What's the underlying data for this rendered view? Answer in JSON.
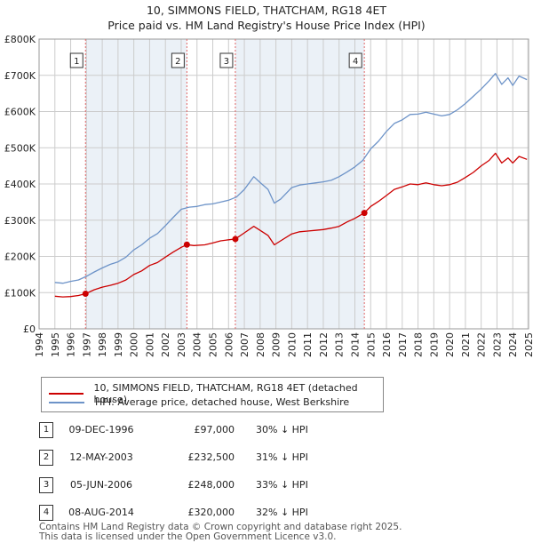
{
  "title_line1": "10, SIMMONS FIELD, THATCHAM, RG18 4ET",
  "title_line2": "Price paid vs. HM Land Registry's House Price Index (HPI)",
  "colors": {
    "property": "#cc0000",
    "hpi": "#6d93c8",
    "grid": "#cccccc",
    "shade": "#dbe5f1"
  },
  "chart_data": {
    "type": "line",
    "title": "Price paid vs. HM Land Registry's House Price Index (HPI)",
    "xlabel": "",
    "ylabel": "",
    "xlim": [
      1994,
      2025
    ],
    "ylim": [
      0,
      800000
    ],
    "x_ticks": [
      "1994",
      "1995",
      "1996",
      "1997",
      "1998",
      "1999",
      "2000",
      "2001",
      "2002",
      "2003",
      "2004",
      "2005",
      "2006",
      "2007",
      "2008",
      "2009",
      "2010",
      "2011",
      "2012",
      "2013",
      "2014",
      "2015",
      "2016",
      "2017",
      "2018",
      "2019",
      "2020",
      "2021",
      "2022",
      "2023",
      "2024",
      "2025"
    ],
    "y_ticks": [
      {
        "value": 0,
        "label": "£0"
      },
      {
        "value": 100000,
        "label": "£100K"
      },
      {
        "value": 200000,
        "label": "£200K"
      },
      {
        "value": 300000,
        "label": "£300K"
      },
      {
        "value": 400000,
        "label": "£400K"
      },
      {
        "value": 500000,
        "label": "£500K"
      },
      {
        "value": 600000,
        "label": "£600K"
      },
      {
        "value": 700000,
        "label": "£700K"
      },
      {
        "value": 800000,
        "label": "£800K"
      }
    ],
    "grid": true,
    "series": [
      {
        "name": "10, SIMMONS FIELD, THATCHAM, RG18 4ET (detached house)",
        "color": "#cc0000",
        "points": [
          [
            1995.0,
            90000
          ],
          [
            1995.5,
            88000
          ],
          [
            1996.0,
            89000
          ],
          [
            1996.5,
            92000
          ],
          [
            1996.94,
            97000
          ],
          [
            1997.5,
            108000
          ],
          [
            1998.0,
            115000
          ],
          [
            1998.5,
            120000
          ],
          [
            1999.0,
            126000
          ],
          [
            1999.5,
            135000
          ],
          [
            2000.0,
            150000
          ],
          [
            2000.5,
            160000
          ],
          [
            2001.0,
            175000
          ],
          [
            2001.5,
            183000
          ],
          [
            2002.0,
            198000
          ],
          [
            2002.5,
            212000
          ],
          [
            2003.0,
            225000
          ],
          [
            2003.36,
            232500
          ],
          [
            2003.8,
            230000
          ],
          [
            2004.5,
            232000
          ],
          [
            2005.0,
            237000
          ],
          [
            2005.5,
            243000
          ],
          [
            2006.0,
            246000
          ],
          [
            2006.43,
            248000
          ],
          [
            2007.0,
            265000
          ],
          [
            2007.6,
            283000
          ],
          [
            2008.0,
            272000
          ],
          [
            2008.5,
            258000
          ],
          [
            2008.9,
            232000
          ],
          [
            2009.3,
            243000
          ],
          [
            2010.0,
            262000
          ],
          [
            2010.5,
            268000
          ],
          [
            2011.0,
            270000
          ],
          [
            2011.5,
            272000
          ],
          [
            2012.0,
            274000
          ],
          [
            2012.5,
            278000
          ],
          [
            2013.0,
            283000
          ],
          [
            2013.5,
            295000
          ],
          [
            2014.0,
            305000
          ],
          [
            2014.6,
            320000
          ],
          [
            2015.0,
            338000
          ],
          [
            2015.5,
            352000
          ],
          [
            2016.0,
            368000
          ],
          [
            2016.5,
            385000
          ],
          [
            2017.0,
            392000
          ],
          [
            2017.5,
            400000
          ],
          [
            2018.0,
            398000
          ],
          [
            2018.5,
            403000
          ],
          [
            2019.0,
            398000
          ],
          [
            2019.5,
            395000
          ],
          [
            2020.0,
            398000
          ],
          [
            2020.5,
            405000
          ],
          [
            2021.0,
            418000
          ],
          [
            2021.5,
            432000
          ],
          [
            2022.0,
            450000
          ],
          [
            2022.5,
            465000
          ],
          [
            2022.9,
            485000
          ],
          [
            2023.3,
            458000
          ],
          [
            2023.7,
            472000
          ],
          [
            2024.0,
            458000
          ],
          [
            2024.4,
            476000
          ],
          [
            2024.9,
            468000
          ]
        ]
      },
      {
        "name": "HPI: Average price, detached house, West Berkshire",
        "color": "#6d93c8",
        "points": [
          [
            1995.0,
            128000
          ],
          [
            1995.5,
            126000
          ],
          [
            1996.0,
            131000
          ],
          [
            1996.5,
            135000
          ],
          [
            1997.0,
            145000
          ],
          [
            1997.5,
            157000
          ],
          [
            1998.0,
            168000
          ],
          [
            1998.5,
            178000
          ],
          [
            1999.0,
            185000
          ],
          [
            1999.5,
            198000
          ],
          [
            2000.0,
            218000
          ],
          [
            2000.5,
            232000
          ],
          [
            2001.0,
            250000
          ],
          [
            2001.5,
            263000
          ],
          [
            2002.0,
            285000
          ],
          [
            2002.5,
            308000
          ],
          [
            2003.0,
            330000
          ],
          [
            2003.5,
            336000
          ],
          [
            2004.0,
            338000
          ],
          [
            2004.5,
            343000
          ],
          [
            2005.0,
            345000
          ],
          [
            2005.5,
            350000
          ],
          [
            2006.0,
            355000
          ],
          [
            2006.5,
            364000
          ],
          [
            2007.0,
            385000
          ],
          [
            2007.6,
            420000
          ],
          [
            2008.0,
            404000
          ],
          [
            2008.5,
            385000
          ],
          [
            2008.9,
            347000
          ],
          [
            2009.3,
            358000
          ],
          [
            2010.0,
            390000
          ],
          [
            2010.5,
            397000
          ],
          [
            2011.0,
            400000
          ],
          [
            2011.5,
            403000
          ],
          [
            2012.0,
            406000
          ],
          [
            2012.5,
            410000
          ],
          [
            2013.0,
            420000
          ],
          [
            2013.5,
            433000
          ],
          [
            2014.0,
            447000
          ],
          [
            2014.5,
            465000
          ],
          [
            2015.0,
            497000
          ],
          [
            2015.5,
            518000
          ],
          [
            2016.0,
            545000
          ],
          [
            2016.5,
            567000
          ],
          [
            2017.0,
            577000
          ],
          [
            2017.5,
            592000
          ],
          [
            2018.0,
            593000
          ],
          [
            2018.5,
            598000
          ],
          [
            2019.0,
            593000
          ],
          [
            2019.5,
            588000
          ],
          [
            2020.0,
            592000
          ],
          [
            2020.5,
            605000
          ],
          [
            2021.0,
            622000
          ],
          [
            2021.5,
            642000
          ],
          [
            2022.0,
            662000
          ],
          [
            2022.5,
            685000
          ],
          [
            2022.9,
            705000
          ],
          [
            2023.3,
            675000
          ],
          [
            2023.7,
            693000
          ],
          [
            2024.0,
            672000
          ],
          [
            2024.4,
            698000
          ],
          [
            2024.9,
            688000
          ]
        ]
      }
    ],
    "sales": [
      {
        "n": "1",
        "x": 1996.94,
        "value": 97000
      },
      {
        "n": "2",
        "x": 2003.36,
        "value": 232500
      },
      {
        "n": "3",
        "x": 2006.43,
        "value": 248000
      },
      {
        "n": "4",
        "x": 2014.6,
        "value": 320000
      }
    ],
    "legend_position": "bottom"
  },
  "legend": {
    "property_label": "10, SIMMONS FIELD, THATCHAM, RG18 4ET (detached house)",
    "hpi_label": "HPI: Average price, detached house, West Berkshire"
  },
  "sales_table": [
    {
      "n": "1",
      "date": "09-DEC-1996",
      "price": "£97,000",
      "hpi": "30% ↓ HPI"
    },
    {
      "n": "2",
      "date": "12-MAY-2003",
      "price": "£232,500",
      "hpi": "31% ↓ HPI"
    },
    {
      "n": "3",
      "date": "05-JUN-2006",
      "price": "£248,000",
      "hpi": "33% ↓ HPI"
    },
    {
      "n": "4",
      "date": "08-AUG-2014",
      "price": "£320,000",
      "hpi": "32% ↓ HPI"
    }
  ],
  "footer_line1": "Contains HM Land Registry data © Crown copyright and database right 2025.",
  "footer_line2": "This data is licensed under the Open Government Licence v3.0."
}
